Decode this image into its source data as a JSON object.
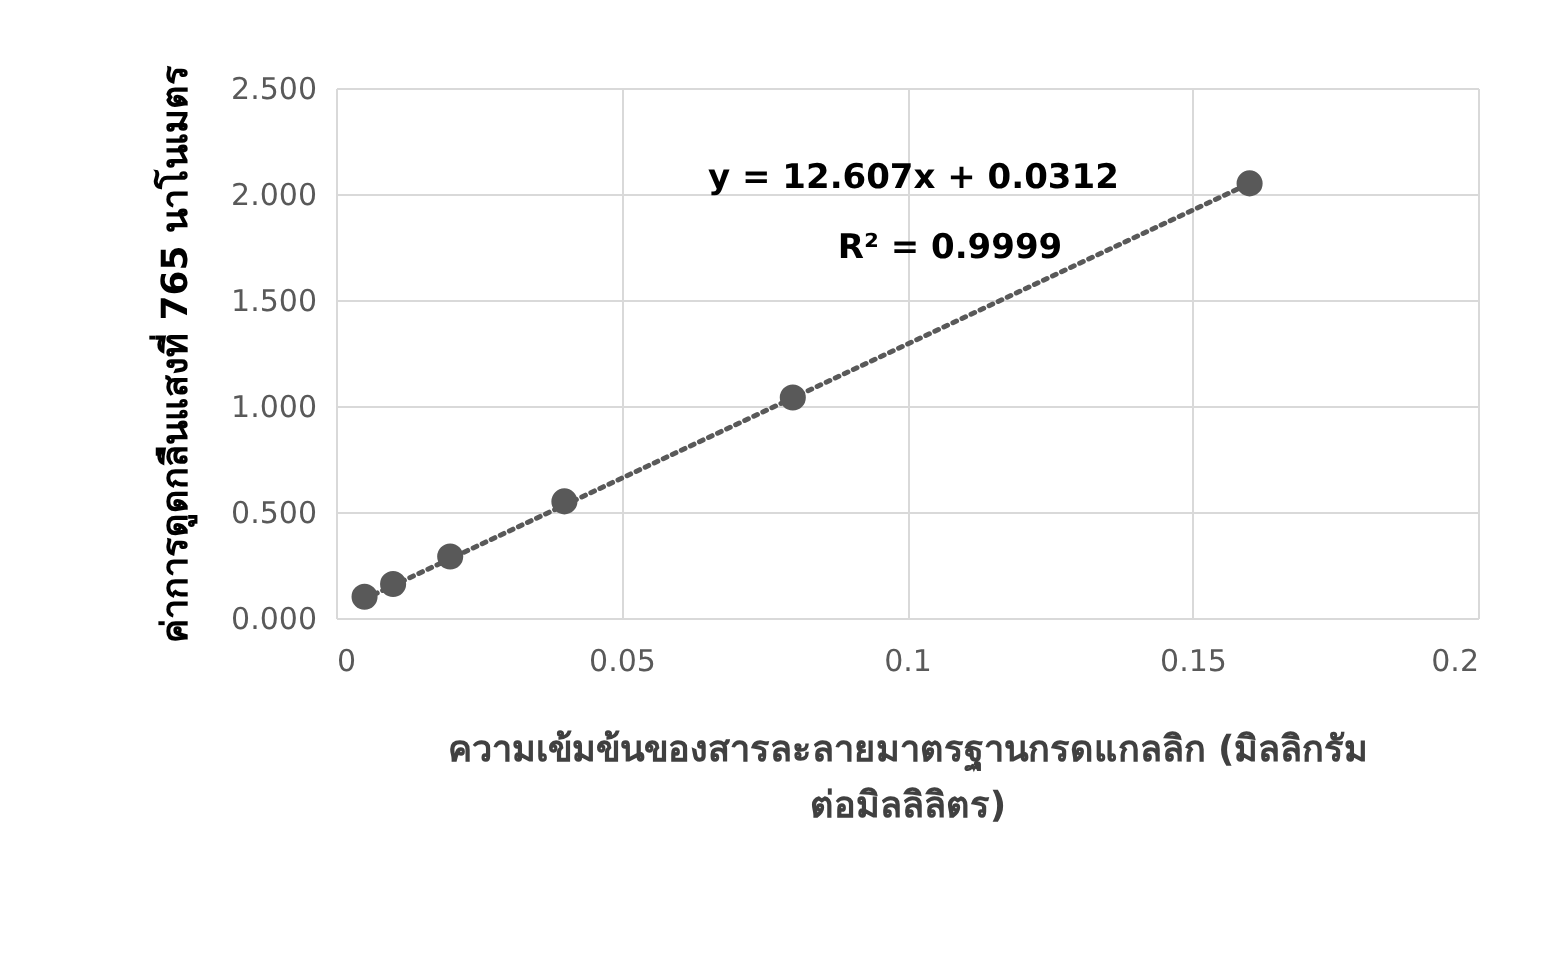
{
  "chart_data": {
    "type": "scatter",
    "xlabel": "ความเข้มข้นของสารละลายมาตรฐานกรดแกลลิก (มิลลิกรัม ต่อมิลลิลิตร)",
    "ylabel": "ค่าการดูดกลืนแสงที่ 765 นาโนเมตร",
    "x": [
      0.005,
      0.01,
      0.02,
      0.04,
      0.08,
      0.16
    ],
    "series": [
      {
        "color": "#595959",
        "marker": "circle",
        "values": [
          0.1,
          0.16,
          0.29,
          0.55,
          1.04,
          2.05
        ]
      },
      {
        "type": "line",
        "color": "#595959",
        "line_style": "dotted",
        "x": [
          0.005,
          0.16
        ],
        "values": [
          0.09,
          2.05
        ]
      }
    ],
    "xlim": [
      0,
      0.2
    ],
    "xticks": [
      0,
      0.05,
      0.1,
      0.15,
      0.2
    ],
    "ylim": [
      0,
      2.5
    ],
    "yticks": [
      {
        "value": 0,
        "label": "0.000"
      },
      {
        "value": 0.5,
        "label": "0.500"
      },
      {
        "value": 1,
        "label": "1.000"
      },
      {
        "value": 1.5,
        "label": "1.500"
      },
      {
        "value": 2,
        "label": "2.000"
      },
      {
        "value": 2.5,
        "label": "2.500"
      }
    ],
    "grid": true,
    "annotations": [
      "y = 12.607x + 0.0312",
      "R² = 0.9999"
    ]
  }
}
